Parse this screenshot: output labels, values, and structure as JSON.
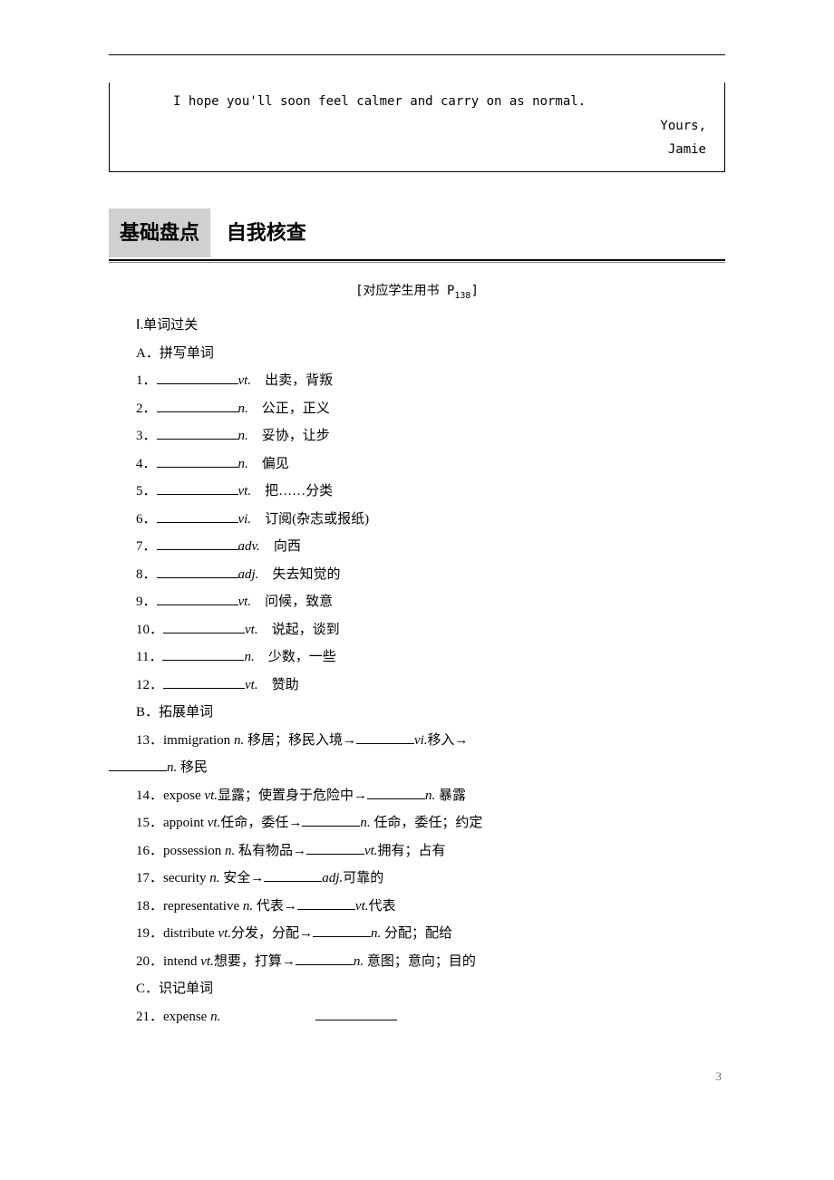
{
  "letter": {
    "line1": "I hope you'll soon feel calmer and carry on as normal.",
    "sign1": "Yours,",
    "sign2": "Jamie"
  },
  "sectionHead": {
    "box": "基础盘点",
    "sub": "自我核查"
  },
  "refNote": {
    "prefix": "[对应学生用书 P",
    "num": "138",
    "suffix": "]"
  },
  "headings": {
    "I": "Ⅰ.单词过关",
    "A": "A．拼写单词",
    "B": "B．拓展单词",
    "C": "C．识记单词"
  },
  "spellWords": [
    {
      "n": "1．",
      "pos": "vt.",
      "def": "　出卖，背叛"
    },
    {
      "n": "2．",
      "pos": "n.",
      "def": "　公正，正义"
    },
    {
      "n": "3．",
      "pos": "n.",
      "def": "　妥协，让步"
    },
    {
      "n": "4．",
      "pos": "n.",
      "def": "　偏见"
    },
    {
      "n": "5．",
      "pos": "vt.",
      "def": "　把……分类"
    },
    {
      "n": "6．",
      "pos": "vi.",
      "def": "　订阅(杂志或报纸)"
    },
    {
      "n": "7．",
      "pos": "adv.",
      "def": "　向西"
    },
    {
      "n": "8．",
      "pos": "adj.",
      "def": "　失去知觉的"
    },
    {
      "n": "9．",
      "pos": "vt.",
      "def": "　问候，致意"
    },
    {
      "n": "10．",
      "pos": "vt.",
      "def": "　说起，谈到"
    },
    {
      "n": "11．",
      "pos": "n.",
      "def": "　少数，一些"
    },
    {
      "n": "12．",
      "pos": "vt.",
      "def": "　赞助"
    }
  ],
  "extendWords": [
    {
      "n": "13．",
      "pre": "immigration ",
      "pos1": "n.",
      "mid1": " 移居；移民入境→",
      "pos2": "vi.",
      "mid2": "移入→",
      "pos3": "n.",
      "tail": " 移民",
      "wrap": true
    },
    {
      "n": "14．",
      "pre": "expose ",
      "pos1": "vt.",
      "mid1": "显露；使置身于危险中→",
      "pos2": "n.",
      "tail": " 暴露"
    },
    {
      "n": "15．",
      "pre": "appoint ",
      "pos1": "vt.",
      "mid1": "任命，委任→",
      "pos2": "n.",
      "tail": " 任命，委任；约定"
    },
    {
      "n": "16．",
      "pre": "possession ",
      "pos1": "n.",
      "mid1": " 私有物品→",
      "pos2": "vt.",
      "tail": "拥有；占有"
    },
    {
      "n": "17．",
      "pre": "security ",
      "pos1": "n.",
      "mid1": " 安全→",
      "pos2": "adj.",
      "tail": "可靠的"
    },
    {
      "n": "18．",
      "pre": "representative ",
      "pos1": "n.",
      "mid1": " 代表→",
      "pos2": "vt.",
      "tail": "代表"
    },
    {
      "n": "19．",
      "pre": "distribute ",
      "pos1": "vt.",
      "mid1": "分发，分配→",
      "pos2": "n.",
      "tail": " 分配；配给"
    },
    {
      "n": "20．",
      "pre": "intend ",
      "pos1": "vt.",
      "mid1": "想要，打算→",
      "pos2": "n.",
      "tail": " 意图；意向；目的"
    }
  ],
  "recogWords": [
    {
      "n": "21．",
      "pre": "expense ",
      "pos": "n."
    }
  ],
  "pageNum": "3"
}
